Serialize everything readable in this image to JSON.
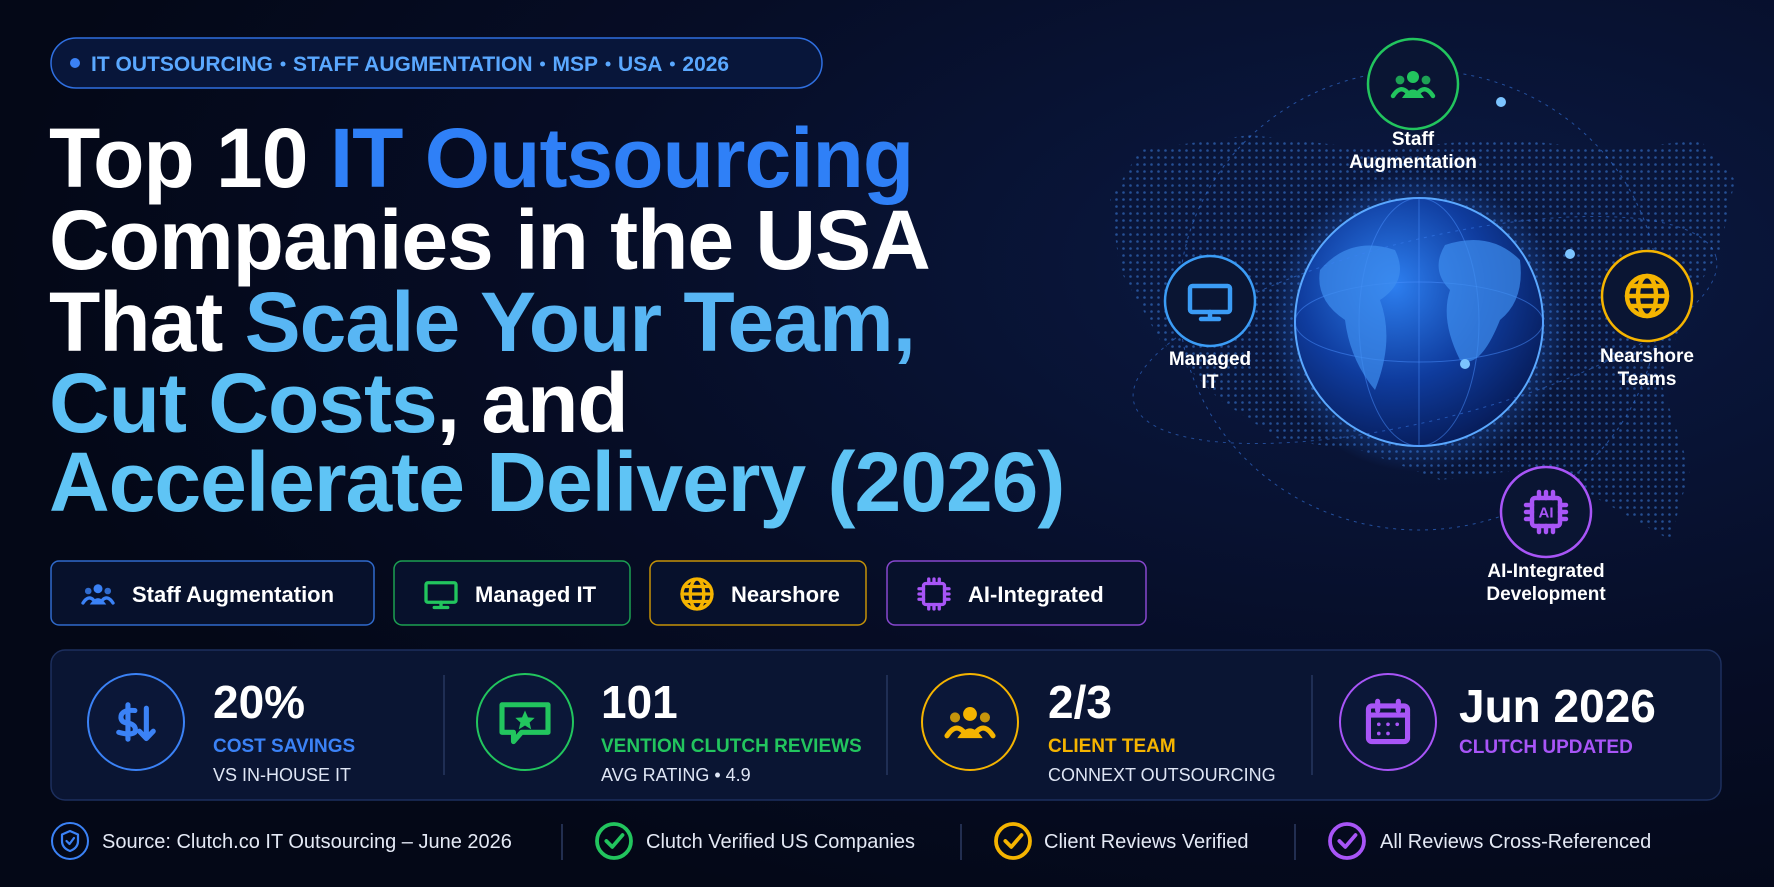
{
  "tag": {
    "items": [
      "IT OUTSOURCING",
      "STAFF AUGMENTATION",
      "MSP",
      "USA",
      "2026"
    ]
  },
  "title": {
    "lines": [
      [
        {
          "text": "Top 10 ",
          "color": "#ffffff"
        },
        {
          "text": "IT Outsourcing",
          "color": "#2f80f7"
        }
      ],
      [
        {
          "text": "Companies in the USA",
          "color": "#ffffff"
        }
      ],
      [
        {
          "text": "That ",
          "color": "#ffffff"
        },
        {
          "text": "Scale Your Team,",
          "color": "#58b6f4"
        }
      ],
      [
        {
          "text": "Cut Costs",
          "color": "#5cc0f5"
        },
        {
          "text": ", and",
          "color": "#ffffff"
        }
      ],
      [
        {
          "text": "Accelerate Delivery (2026)",
          "color": "#5fc4f5"
        }
      ]
    ]
  },
  "pills": [
    {
      "label": "Staff Augmentation",
      "color": "#3b82f6"
    },
    {
      "label": "Managed IT",
      "color": "#22c55e"
    },
    {
      "label": "Nearshore",
      "color": "#f5b400"
    },
    {
      "label": "AI-Integrated",
      "color": "#a855f7"
    }
  ],
  "stats": [
    {
      "value": "20%",
      "label": "COST SAVINGS",
      "sublabel": "VS IN-HOUSE IT",
      "color": "#3b82f6"
    },
    {
      "value": "101",
      "label": "VENTION CLUTCH REVIEWS",
      "sublabel": "AVG RATING • 4.9",
      "color": "#22c55e"
    },
    {
      "value": "2/3",
      "label": "CLIENT TEAM",
      "sublabel": "CONNEXT OUTSOURCING",
      "color": "#f5b400"
    },
    {
      "value": "Jun 2026",
      "label": "CLUTCH UPDATED",
      "color": "#a855f7"
    }
  ],
  "footer": [
    {
      "text": "Source: Clutch.co IT Outsourcing – June 2026",
      "color": "#3b82f6"
    },
    {
      "text": "Clutch Verified US Companies",
      "color": "#22c55e"
    },
    {
      "text": "Client Reviews Verified",
      "color": "#f5b400"
    },
    {
      "text": "All Reviews Cross-Referenced",
      "color": "#a855f7"
    }
  ],
  "nodes": [
    {
      "label": [
        "Staff",
        "Augmentation"
      ],
      "color": "#22c55e"
    },
    {
      "label": [
        "Managed",
        "IT"
      ],
      "color": "#3b9cf6"
    },
    {
      "label": [
        "Nearshore",
        "Teams"
      ],
      "color": "#f5b400"
    },
    {
      "label": [
        "AI-Integrated",
        "Development"
      ],
      "color": "#a855f7",
      "icon_text": "AI"
    }
  ]
}
